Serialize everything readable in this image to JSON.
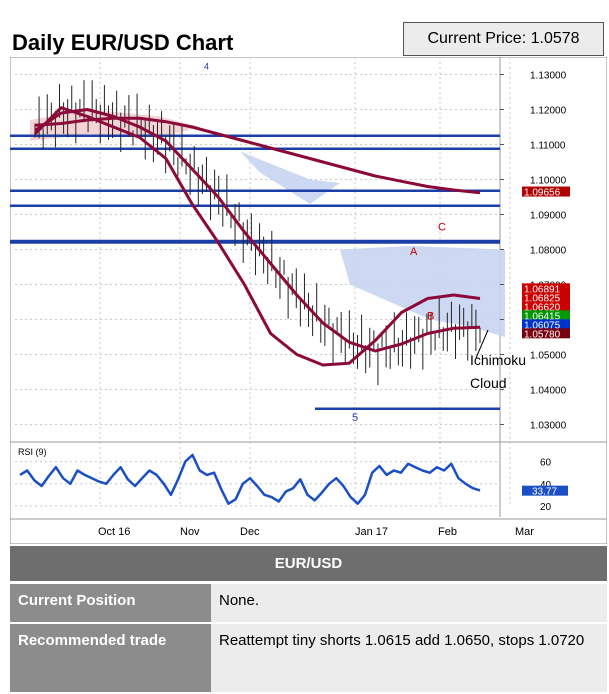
{
  "header": {
    "title": "Daily EUR/USD Chart",
    "current_price": "Current Price: 1.0578"
  },
  "chart_data": {
    "type": "line",
    "instrument": "EUR/USD",
    "timeframe": "daily",
    "x_labels": [
      "Oct 16",
      "Nov",
      "Dec",
      "Jan 17",
      "Feb",
      "Mar"
    ],
    "price_axis": {
      "ticks": [
        "1.13000",
        "1.12000",
        "1.11000",
        "1.10000",
        "1.09000",
        "1.08000",
        "1.07000",
        "1.06000",
        "1.05000",
        "1.04000",
        "1.03000"
      ],
      "ylim": [
        1.025,
        1.135
      ]
    },
    "price_labels": [
      {
        "text": "1.09656",
        "color": "#b00000",
        "value": 1.09656
      },
      {
        "text": "1.06891",
        "color": "#cc0000",
        "value": 1.06891
      },
      {
        "text": "1.06825",
        "color": "#cc0000",
        "value": 1.06825
      },
      {
        "text": "1.06620",
        "color": "#cc0000",
        "value": 1.0662
      },
      {
        "text": "1.06415",
        "color": "#009900",
        "value": 1.06415
      },
      {
        "text": "1.06075",
        "color": "#0033cc",
        "value": 1.06075
      },
      {
        "text": "1.05780",
        "color": "#7a0010",
        "value": 1.0578
      }
    ],
    "horizontal_levels": [
      1.1125,
      1.1088,
      1.0968,
      1.0925,
      1.0822,
      1.0345
    ],
    "series": [
      {
        "color": "#8b0a3a",
        "values": [
          1.1155,
          1.116,
          1.117,
          1.1175,
          1.1175,
          1.1165,
          1.115,
          1.113,
          1.111,
          1.109,
          1.107,
          1.105,
          1.103,
          1.101,
          1.0995,
          1.098,
          1.097,
          1.0962
        ]
      },
      {
        "color": "#8b0a3a",
        "values": [
          1.114,
          1.119,
          1.12,
          1.118,
          1.115,
          1.111,
          1.103,
          1.095,
          1.085,
          1.076,
          1.067,
          1.059,
          1.0535,
          1.051,
          1.053,
          1.056,
          1.0575,
          1.0578
        ]
      },
      {
        "color": "#8b0a3a",
        "values": [
          1.113,
          1.1205,
          1.118,
          1.115,
          1.112,
          1.106,
          1.093,
          1.082,
          1.07,
          1.056,
          1.05,
          1.047,
          1.0475,
          1.054,
          1.062,
          1.066,
          1.067,
          1.066
        ]
      }
    ],
    "annotations": [
      "4",
      "A",
      "C",
      "B",
      "5",
      "Ichimoku",
      "Cloud"
    ],
    "rsi": {
      "label": "RSI (9)",
      "ticks": [
        "60",
        "40",
        "20"
      ],
      "ylim": [
        10,
        75
      ],
      "current": "33.77",
      "values": [
        48,
        52,
        43,
        38,
        47,
        55,
        45,
        40,
        52,
        48,
        45,
        42,
        40,
        48,
        55,
        44,
        38,
        45,
        52,
        48,
        40,
        30,
        44,
        60,
        66,
        52,
        48,
        50,
        35,
        22,
        26,
        40,
        45,
        38,
        30,
        28,
        24,
        33,
        36,
        44,
        30,
        25,
        32,
        40,
        45,
        38,
        28,
        22,
        30,
        50,
        56,
        48,
        52,
        50,
        58,
        55,
        52,
        50,
        55,
        52,
        58,
        45,
        40,
        36,
        34
      ]
    }
  },
  "table": {
    "header": "EUR/USD",
    "rows": [
      {
        "label": "Current Position",
        "value": "None."
      },
      {
        "label": "Recommended trade",
        "value": "Reattempt tiny shorts  1.0615 add 1.0650, stops 1.0720"
      }
    ]
  },
  "colors": {
    "blue_level": "#1b3fa8",
    "wine": "#8b0a3a",
    "cloud": "#c8d4f2",
    "red_cloud": "#f0c8cc",
    "rsi": "#1b4fc4",
    "table_header": "#6e6e6e"
  }
}
